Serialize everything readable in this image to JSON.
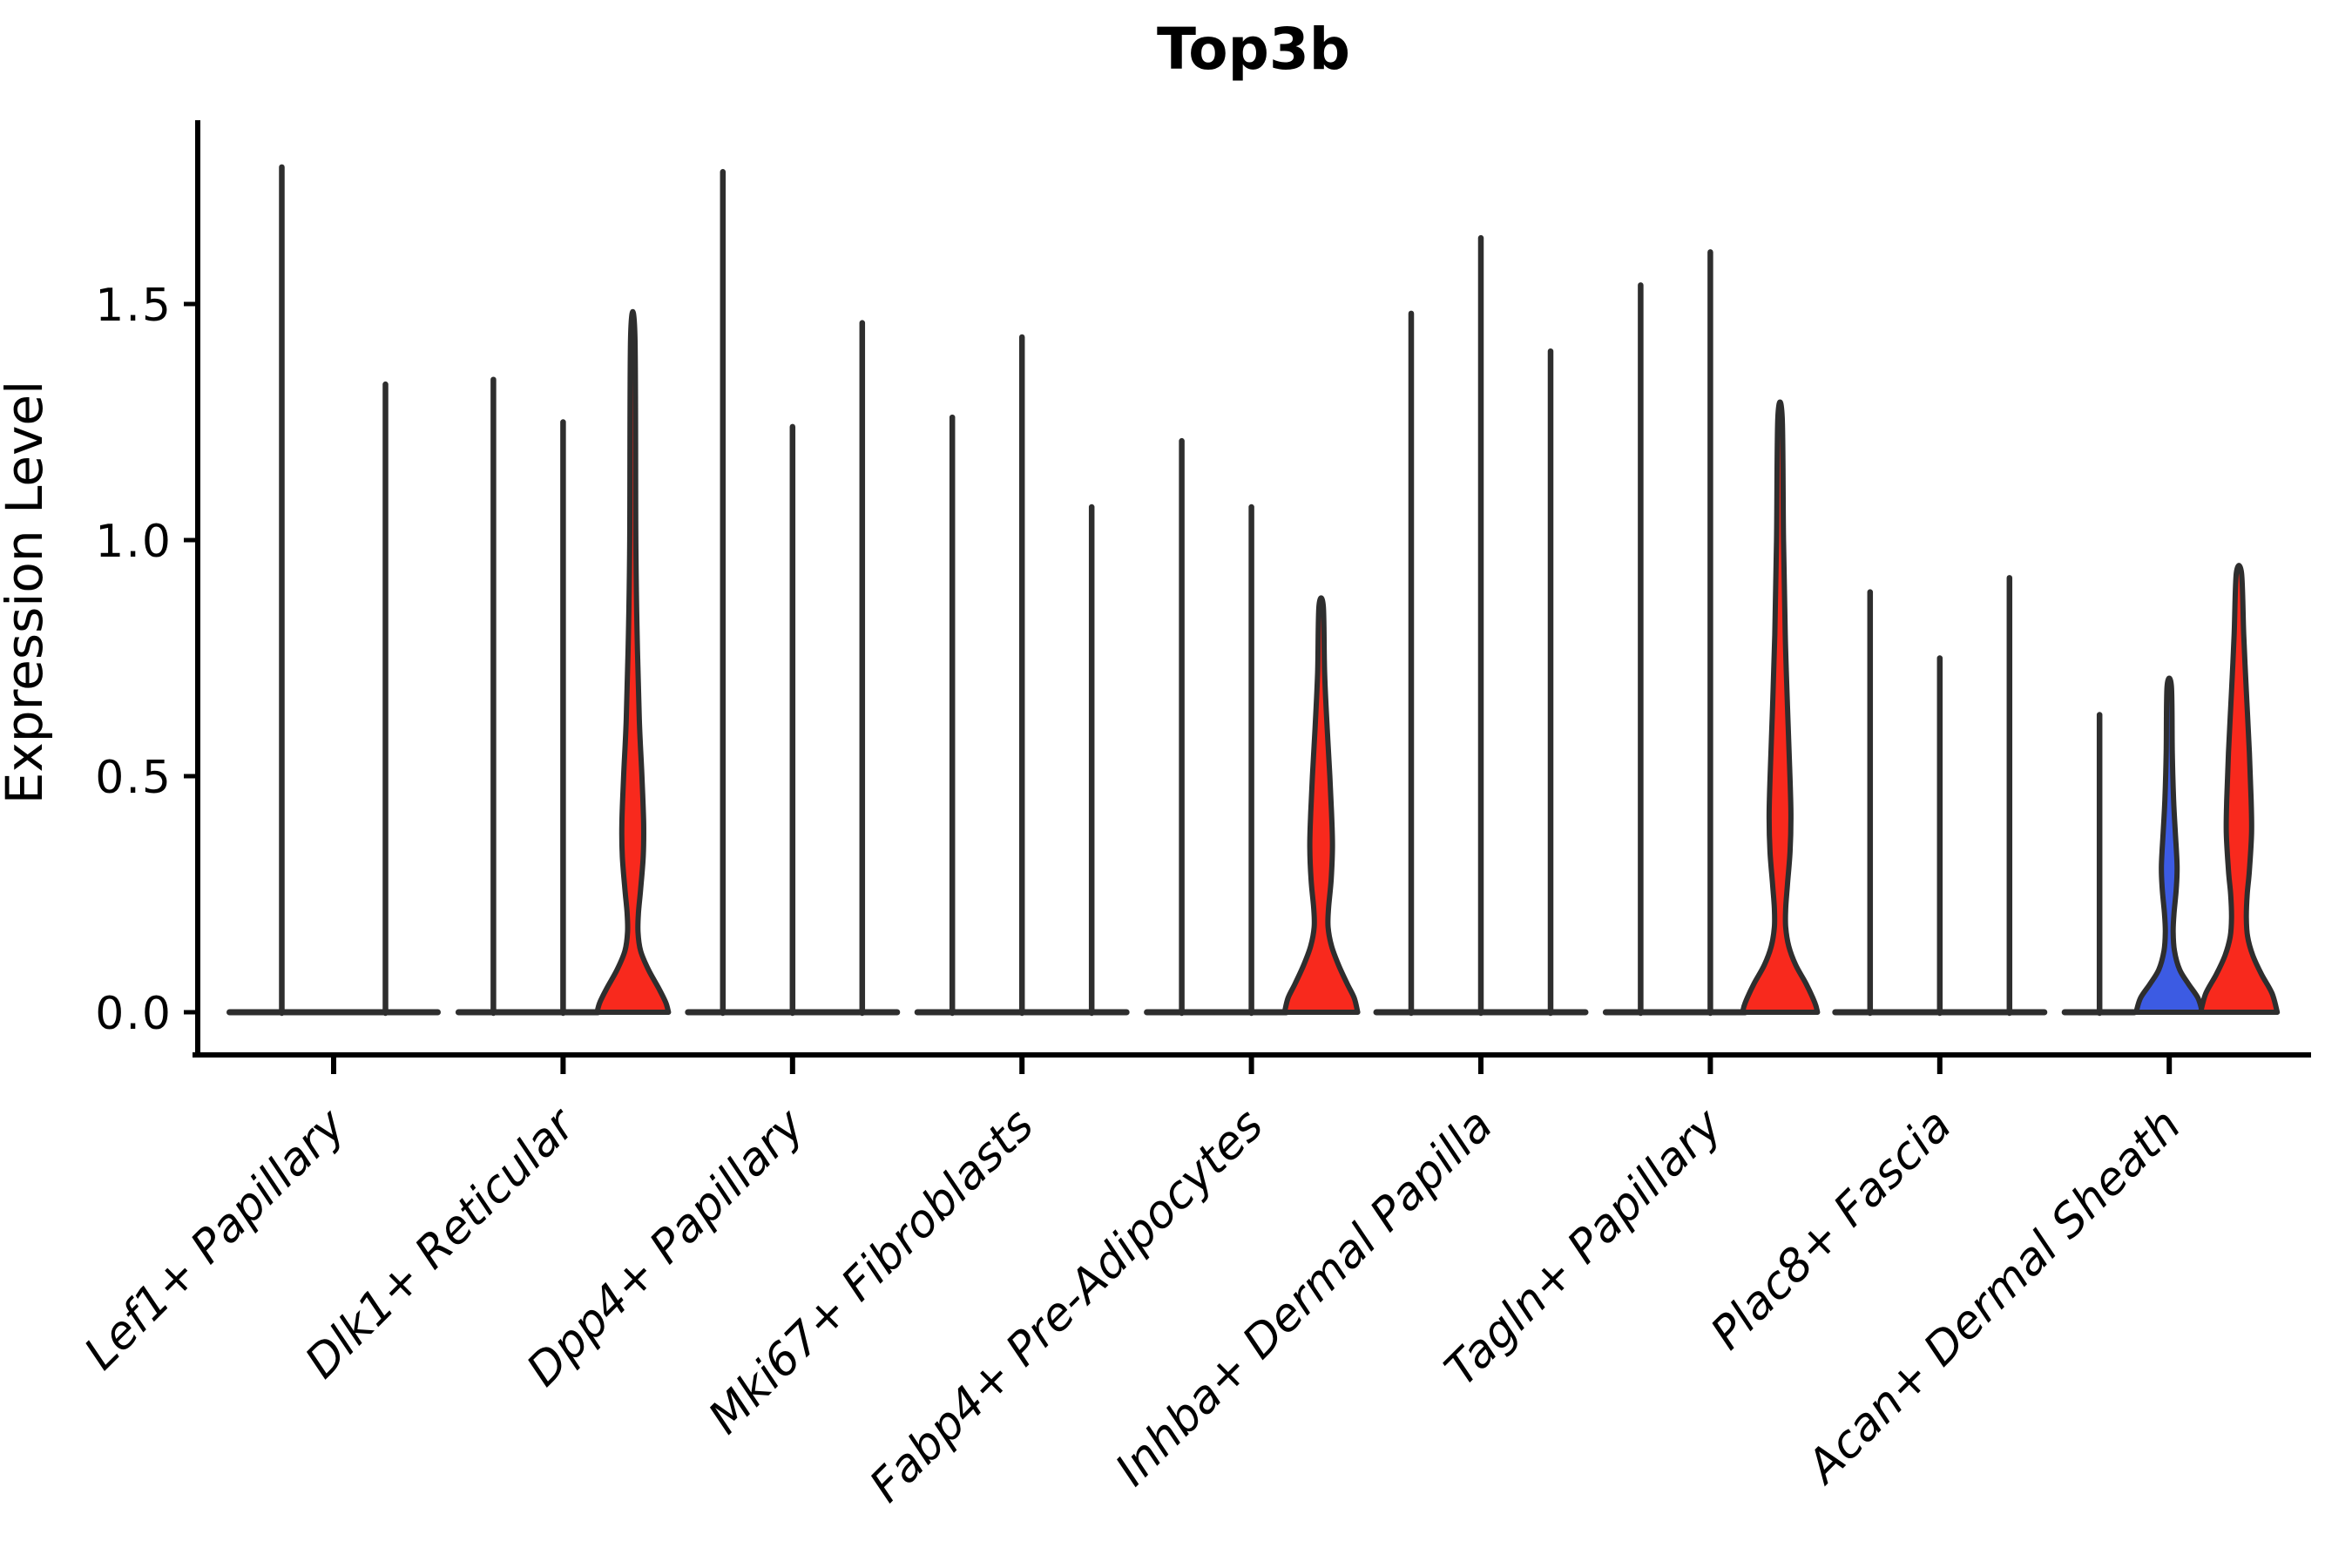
{
  "figure": {
    "title": "Top3b"
  },
  "y_axis": {
    "label": "Expression Level"
  },
  "chart_data": {
    "type": "violin",
    "title": "Top3b",
    "ylabel": "Expression Level",
    "xlabel": "",
    "ylim": [
      0,
      1.88
    ],
    "yticks": [
      0,
      0.5,
      1.0,
      1.5
    ],
    "ytick_labels": [
      "0.0",
      "0.5",
      "1.0",
      "1.5"
    ],
    "grid": false,
    "legend_position": "none",
    "x_tick_rotation_deg": 45,
    "categories": [
      "Lef1+ Papillary",
      "Dlk1+ Reticular",
      "Dpp4+ Papillary",
      "Mki67+ Fibroblasts",
      "Fabp4+ Pre-Adipocytes",
      "Inhba+ Dermal Papilla",
      "Tagln+ Papillary",
      "Plac8+ Fascia",
      "Acan+ Dermal Sheath"
    ],
    "colors": {
      "red": "#F8291D",
      "blue": "#3C5BE3",
      "outline": "#2E2E2E",
      "axis": "#000000"
    },
    "groups": [
      {
        "category": "Lef1+ Papillary",
        "violins": [
          {
            "max": 1.79,
            "fill": "none"
          },
          {
            "max": 1.33,
            "fill": "none"
          }
        ]
      },
      {
        "category": "Dlk1+ Reticular",
        "violins": [
          {
            "max": 1.34,
            "fill": "none"
          },
          {
            "max": 1.25,
            "fill": "none"
          },
          {
            "max": 1.43,
            "fill": "red",
            "profile": [
              [
                0,
                41
              ],
              [
                0.02,
                38
              ],
              [
                0.05,
                30
              ],
              [
                0.09,
                18
              ],
              [
                0.13,
                9
              ],
              [
                0.17,
                6
              ],
              [
                0.21,
                6.5
              ],
              [
                0.26,
                9
              ],
              [
                0.33,
                12
              ],
              [
                0.4,
                12.5
              ],
              [
                0.5,
                10.5
              ],
              [
                0.62,
                7.5
              ],
              [
                0.8,
                5
              ],
              [
                1.0,
                3.5
              ],
              [
                1.43,
                2.5
              ]
            ]
          }
        ]
      },
      {
        "category": "Dpp4+ Papillary",
        "violins": [
          {
            "max": 1.78,
            "fill": "none"
          },
          {
            "max": 1.24,
            "fill": "none"
          },
          {
            "max": 1.46,
            "fill": "none"
          }
        ]
      },
      {
        "category": "Mki67+ Fibroblasts",
        "violins": [
          {
            "max": 1.26,
            "fill": "none"
          },
          {
            "max": 1.43,
            "fill": "none"
          },
          {
            "max": 1.07,
            "fill": "none"
          }
        ]
      },
      {
        "category": "Fabp4+ Pre-Adipocytes",
        "violins": [
          {
            "max": 1.21,
            "fill": "none"
          },
          {
            "max": 1.07,
            "fill": "none"
          },
          {
            "max": 0.86,
            "fill": "red",
            "profile": [
              [
                0,
                42
              ],
              [
                0.03,
                38
              ],
              [
                0.06,
                30
              ],
              [
                0.1,
                20
              ],
              [
                0.14,
                12
              ],
              [
                0.18,
                8
              ],
              [
                0.22,
                8.5
              ],
              [
                0.28,
                11.5
              ],
              [
                0.35,
                13
              ],
              [
                0.42,
                12
              ],
              [
                0.5,
                10
              ],
              [
                0.6,
                7
              ],
              [
                0.72,
                4
              ],
              [
                0.86,
                2.5
              ]
            ]
          }
        ]
      },
      {
        "category": "Inhba+ Dermal Papilla",
        "violins": [
          {
            "max": 1.48,
            "fill": "none"
          },
          {
            "max": 1.64,
            "fill": "none"
          },
          {
            "max": 1.4,
            "fill": "none"
          }
        ]
      },
      {
        "category": "Tagln+ Papillary",
        "violins": [
          {
            "max": 1.54,
            "fill": "none"
          },
          {
            "max": 1.61,
            "fill": "none"
          },
          {
            "max": 1.26,
            "fill": "red",
            "profile": [
              [
                0,
                43
              ],
              [
                0.02,
                40
              ],
              [
                0.06,
                30
              ],
              [
                0.1,
                18
              ],
              [
                0.14,
                10
              ],
              [
                0.18,
                6.5
              ],
              [
                0.22,
                6.5
              ],
              [
                0.27,
                8.5
              ],
              [
                0.34,
                11.5
              ],
              [
                0.42,
                12.5
              ],
              [
                0.52,
                11
              ],
              [
                0.65,
                8.5
              ],
              [
                0.8,
                6
              ],
              [
                1.0,
                4
              ],
              [
                1.26,
                2.5
              ]
            ]
          }
        ]
      },
      {
        "category": "Plac8+ Fascia",
        "violins": [
          {
            "max": 0.89,
            "fill": "none"
          },
          {
            "max": 0.75,
            "fill": "none"
          },
          {
            "max": 0.92,
            "fill": "none"
          }
        ]
      },
      {
        "category": "Acan+ Dermal Sheath",
        "violins": [
          {
            "max": 0.63,
            "fill": "none"
          },
          {
            "max": 0.69,
            "fill": "blue",
            "profile": [
              [
                0,
                38
              ],
              [
                0.03,
                33
              ],
              [
                0.06,
                22
              ],
              [
                0.09,
                12
              ],
              [
                0.13,
                6
              ],
              [
                0.17,
                4.5
              ],
              [
                0.21,
                5.5
              ],
              [
                0.26,
                8
              ],
              [
                0.31,
                9
              ],
              [
                0.38,
                7
              ],
              [
                0.45,
                5
              ],
              [
                0.55,
                3.5
              ],
              [
                0.69,
                2.5
              ]
            ]
          },
          {
            "max": 0.93,
            "fill": "red",
            "profile": [
              [
                0,
                44
              ],
              [
                0.04,
                38
              ],
              [
                0.08,
                26
              ],
              [
                0.12,
                16
              ],
              [
                0.16,
                10
              ],
              [
                0.2,
                8.5
              ],
              [
                0.25,
                9.5
              ],
              [
                0.3,
                12
              ],
              [
                0.38,
                14.5
              ],
              [
                0.45,
                14
              ],
              [
                0.55,
                12
              ],
              [
                0.68,
                8.5
              ],
              [
                0.8,
                5.5
              ],
              [
                0.93,
                3
              ]
            ]
          }
        ]
      }
    ]
  }
}
